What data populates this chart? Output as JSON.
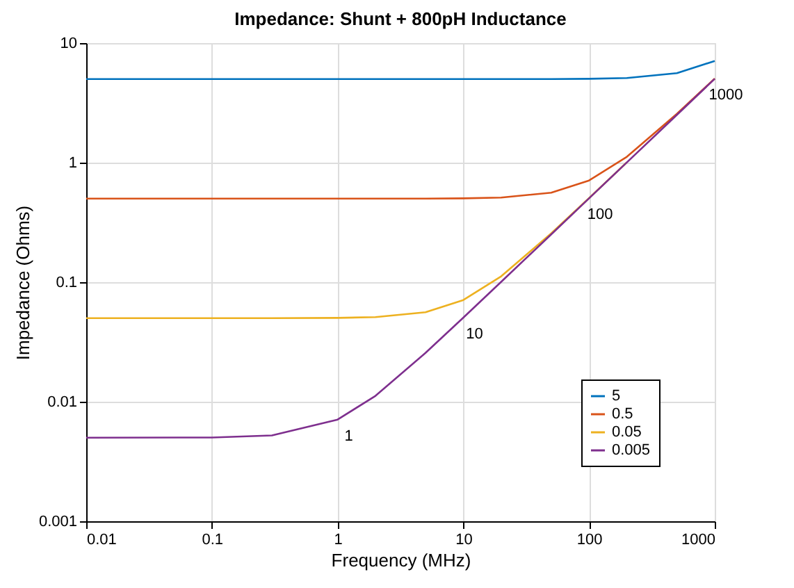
{
  "chart_data": {
    "type": "line",
    "title": "Impedance: Shunt + 800pH Inductance",
    "xlabel": "Frequency (MHz)",
    "ylabel": "Impedance (Ohms)",
    "x": [
      0.01,
      0.1,
      0.3,
      1,
      2,
      5,
      10,
      20,
      50,
      100,
      200,
      500,
      1000
    ],
    "series": [
      {
        "name": "5",
        "color": "#0072bd",
        "values": [
          5,
          5,
          5,
          5,
          5,
          5,
          5,
          5,
          5,
          5.025,
          5.1,
          5.61,
          7.09
        ]
      },
      {
        "name": "0.5",
        "color": "#d95319",
        "values": [
          0.5,
          0.5,
          0.5,
          0.5,
          0.5,
          0.5,
          0.5025,
          0.51,
          0.561,
          0.709,
          1.12,
          2.56,
          5.05
        ]
      },
      {
        "name": "0.05",
        "color": "#edb120",
        "values": [
          0.05,
          0.05,
          0.05,
          0.0503,
          0.051,
          0.0561,
          0.0709,
          0.112,
          0.256,
          0.505,
          1.006,
          null,
          null
        ]
      },
      {
        "name": "0.005",
        "color": "#7e2f8e",
        "values": [
          0.005,
          0.00502,
          0.00522,
          0.00709,
          0.0112,
          0.0256,
          0.0505,
          0.1006,
          0.251,
          0.503,
          1.005,
          2.51,
          5.03
        ]
      }
    ],
    "annotations": [
      {
        "text": "1",
        "x": 1,
        "y": 0.00709
      },
      {
        "text": "10",
        "x": 10,
        "y": 0.0503
      },
      {
        "text": "100",
        "x": 100,
        "y": 0.503
      },
      {
        "text": "1000",
        "x": 1000,
        "y": 5.03
      }
    ],
    "xlim": [
      0.01,
      1000
    ],
    "ylim": [
      0.001,
      10
    ],
    "xticks": [
      0.01,
      0.1,
      1,
      10,
      100,
      1000
    ],
    "yticks": [
      0.001,
      0.01,
      0.1,
      1,
      10
    ],
    "log": "xy",
    "grid": true,
    "legend": "bottom right",
    "marker": "none",
    "line_style": "solid"
  }
}
